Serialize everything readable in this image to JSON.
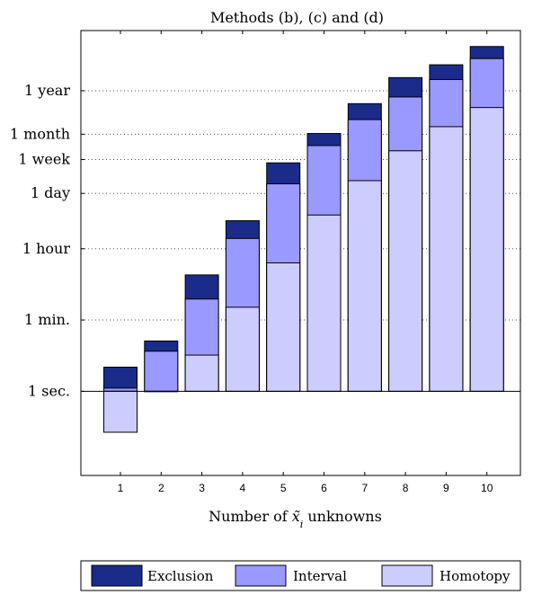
{
  "chart_data": {
    "type": "bar",
    "stacked": true,
    "title": "Methods (b), (c) and (d)",
    "xlabel_parts": [
      "Number of ",
      "x̃",
      "i",
      " unknowns"
    ],
    "ylabel": "",
    "y_scale": "log",
    "y_unit": "seconds",
    "ylim": [
      0.00794,
      1000000000.0
    ],
    "grid": "dotted horizontal at y tick labels",
    "categories": [
      "1",
      "2",
      "3",
      "4",
      "5",
      "6",
      "7",
      "8",
      "9",
      "10"
    ],
    "y_ticks": [
      {
        "label": "1 sec.",
        "value": 1
      },
      {
        "label": "1 min.",
        "value": 60
      },
      {
        "label": "1 hour",
        "value": 3600
      },
      {
        "label": "1 day",
        "value": 86400
      },
      {
        "label": "1 week",
        "value": 604800
      },
      {
        "label": "1 month",
        "value": 2592000
      },
      {
        "label": "1 year",
        "value": 31536000
      }
    ],
    "series": [
      {
        "name": "Homotopy",
        "color": "#ccccff",
        "values": [
          0.095,
          1,
          8,
          125,
          1600,
          25000,
          180000,
          1000000,
          4000000,
          12000000
        ]
      },
      {
        "name": "Interval",
        "color": "#9999ff",
        "values": [
          1.2,
          10,
          200,
          6500,
          150000,
          1350000,
          6000000,
          22000000,
          60000000,
          200000000
        ]
      },
      {
        "name": "Exclusion",
        "color": "#1a2b8a",
        "values": [
          4,
          18,
          800,
          18000,
          500000,
          2700000,
          15000000,
          67000000,
          140000000,
          400000000
        ]
      }
    ],
    "baseline": 1,
    "legend_position": "bottom",
    "legend_order": [
      "Exclusion",
      "Interval",
      "Homotopy"
    ]
  }
}
